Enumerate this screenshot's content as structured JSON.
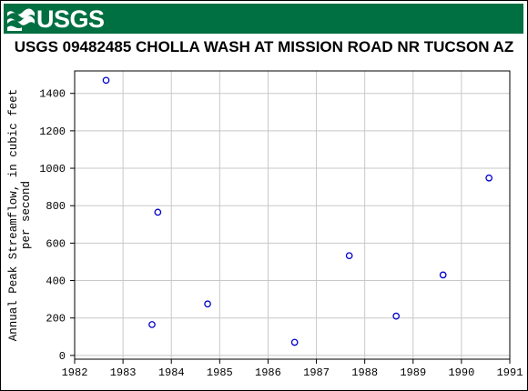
{
  "header": {
    "logo_text": "USGS",
    "logo_icon": "usgs-wave-icon",
    "brand_color": "#006f41"
  },
  "chart_data": {
    "type": "scatter",
    "title": "USGS 09482485 CHOLLA WASH AT MISSION ROAD NR TUCSON AZ",
    "xlabel": "",
    "ylabel_lines": [
      "Annual Peak Streamflow, in cubic feet",
      "per second"
    ],
    "xlim": [
      1982,
      1991
    ],
    "ylim": [
      -20,
      1520
    ],
    "xticks": [
      1982,
      1983,
      1984,
      1985,
      1986,
      1987,
      1988,
      1989,
      1990,
      1991
    ],
    "yticks": [
      0,
      200,
      400,
      600,
      800,
      1000,
      1200,
      1400
    ],
    "grid": true,
    "marker_color": "#0000cc",
    "points": [
      {
        "x": 1982.65,
        "y": 1470
      },
      {
        "x": 1983.6,
        "y": 165
      },
      {
        "x": 1983.72,
        "y": 765
      },
      {
        "x": 1984.75,
        "y": 275
      },
      {
        "x": 1986.55,
        "y": 70
      },
      {
        "x": 1987.68,
        "y": 533
      },
      {
        "x": 1988.65,
        "y": 210
      },
      {
        "x": 1989.62,
        "y": 430
      },
      {
        "x": 1990.57,
        "y": 948
      }
    ]
  }
}
